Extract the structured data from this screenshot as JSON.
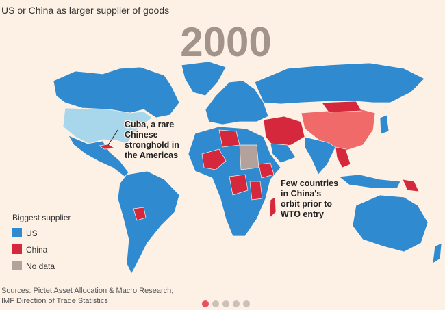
{
  "title": "US or China as larger supplier of goods",
  "year": "2000",
  "legend": {
    "title": "Biggest supplier",
    "items": [
      {
        "label": "US",
        "color": "#2f8ad0"
      },
      {
        "label": "China",
        "color": "#d5283c"
      },
      {
        "label": "No data",
        "color": "#b2a29b"
      }
    ]
  },
  "annotations": [
    {
      "lines": [
        "Cuba, a rare",
        "Chinese",
        "stronghold in",
        "the Americas"
      ]
    },
    {
      "lines": [
        "Few countries",
        "in China's",
        "orbit prior to",
        "WTO entry"
      ]
    }
  ],
  "sources": [
    "Sources: Pictet Asset Allocation & Macro Research;",
    "IMF Direction of Trade Statistics"
  ]
}
